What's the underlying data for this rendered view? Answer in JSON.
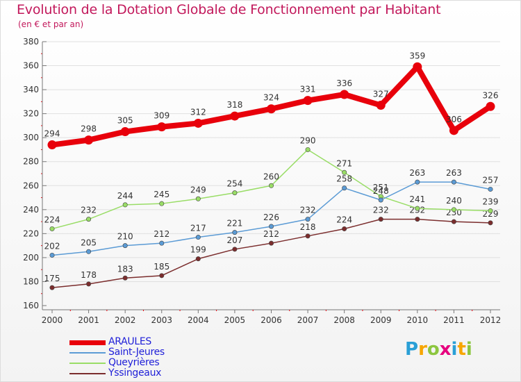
{
  "title": "Evolution de la Dotation Globale de Fonctionnement par Habitant",
  "subtitle": "(en € et par an)",
  "logo": {
    "letters": [
      "P",
      "r",
      "o",
      "x",
      "i",
      "t",
      "i"
    ],
    "colors": [
      "#2a9fd6",
      "#f7a600",
      "#8cc63f",
      "#e6007e",
      "#2a9fd6",
      "#f7a600",
      "#8cc63f"
    ]
  },
  "chart_data": {
    "type": "line",
    "title": "Evolution de la Dotation Globale de Fonctionnement par Habitant",
    "subtitle": "(en € et par an)",
    "xlabel": "",
    "ylabel": "",
    "ylim": [
      160,
      380
    ],
    "yticks": [
      "160",
      "180",
      "200",
      "220",
      "240",
      "260",
      "280",
      "300",
      "320",
      "340",
      "360",
      "380"
    ],
    "categories": [
      "2000",
      "2001",
      "2002",
      "2003",
      "2004",
      "2005",
      "2006",
      "2007",
      "2008",
      "2009",
      "2010",
      "2011",
      "2012"
    ],
    "grid": true,
    "legend_position": "bottom-left",
    "series": [
      {
        "name": "ARAULES",
        "color": "#e8000b",
        "values": [
          294,
          298,
          305,
          309,
          312,
          318,
          324,
          331,
          336,
          327,
          359,
          306,
          326
        ]
      },
      {
        "name": "Saint-Jeures",
        "color": "#5b9bd5",
        "values": [
          202,
          205,
          210,
          212,
          217,
          221,
          226,
          232,
          258,
          248,
          263,
          263,
          257
        ]
      },
      {
        "name": "Queyrières",
        "color": "#99dd66",
        "values": [
          224,
          232,
          244,
          245,
          249,
          254,
          260,
          290,
          271,
          251,
          241,
          240,
          239
        ]
      },
      {
        "name": "Yssingeaux",
        "color": "#7b2d2d",
        "values": [
          175,
          178,
          183,
          185,
          199,
          207,
          212,
          218,
          224,
          232,
          232,
          230,
          229
        ]
      }
    ]
  }
}
